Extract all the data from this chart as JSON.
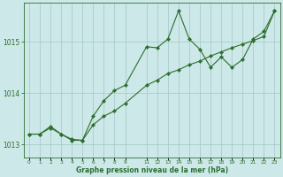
{
  "title": "Graphe pression niveau de la mer (hPa)",
  "background_color": "#cce8e8",
  "grid_color": "#aacccc",
  "line_color": "#2d6e2d",
  "line1_x": [
    0,
    1,
    2,
    3,
    4,
    5,
    6,
    7,
    8,
    9,
    11,
    12,
    13,
    14,
    15,
    16,
    17,
    18,
    19,
    20,
    21,
    22,
    23
  ],
  "line1_y": [
    1013.2,
    1013.2,
    1013.35,
    1013.2,
    1013.1,
    1013.08,
    1013.55,
    1013.85,
    1014.05,
    1014.15,
    1014.9,
    1014.88,
    1015.05,
    1015.6,
    1015.05,
    1014.85,
    1014.5,
    1014.7,
    1014.5,
    1014.65,
    1015.05,
    1015.2,
    1015.6
  ],
  "line2_x": [
    0,
    1,
    2,
    3,
    4,
    5,
    6,
    7,
    8,
    9,
    11,
    12,
    13,
    14,
    15,
    16,
    17,
    18,
    19,
    20,
    21,
    22,
    23
  ],
  "line2_y": [
    1013.2,
    1013.2,
    1013.32,
    1013.2,
    1013.08,
    1013.08,
    1013.38,
    1013.55,
    1013.65,
    1013.8,
    1014.15,
    1014.25,
    1014.38,
    1014.45,
    1014.55,
    1014.62,
    1014.72,
    1014.8,
    1014.88,
    1014.95,
    1015.02,
    1015.1,
    1015.6
  ],
  "ylim": [
    1012.75,
    1015.75
  ],
  "yticks": [
    1013,
    1014,
    1015
  ],
  "xlim": [
    -0.5,
    23.5
  ],
  "xticks": [
    0,
    1,
    2,
    3,
    4,
    5,
    6,
    7,
    8,
    9,
    11,
    12,
    13,
    14,
    15,
    16,
    17,
    18,
    19,
    20,
    21,
    22,
    23
  ],
  "xlabel_fontsize": 5.5,
  "ytick_fontsize": 5.5,
  "xtick_fontsize": 4.2
}
